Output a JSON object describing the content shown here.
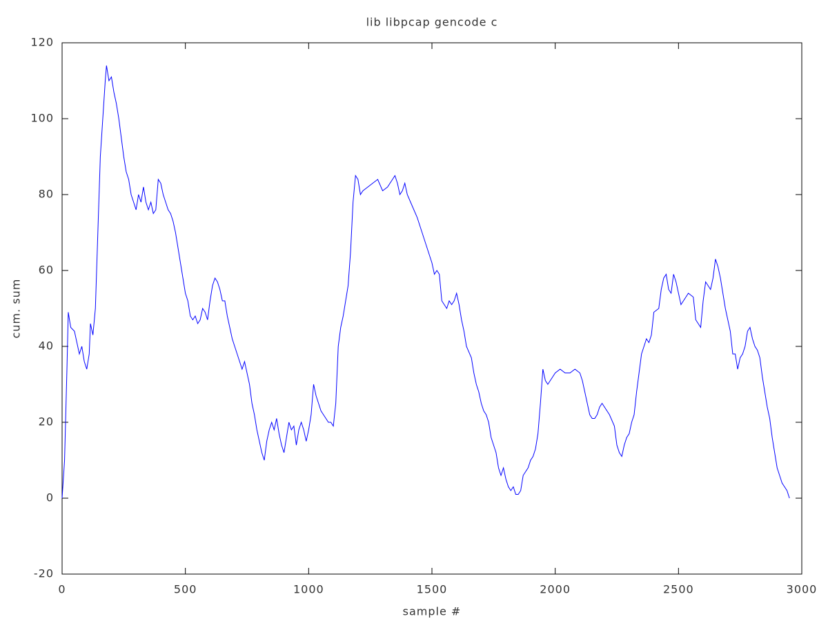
{
  "chart_data": {
    "type": "line",
    "title": "lib libpcap gencode c",
    "x_label": "sample #",
    "y_label": "cum. sum",
    "x": [
      0,
      10,
      20,
      25,
      35,
      50,
      60,
      70,
      80,
      90,
      100,
      110,
      115,
      125,
      135,
      145,
      155,
      165,
      175,
      180,
      190,
      200,
      210,
      220,
      230,
      240,
      250,
      260,
      270,
      280,
      290,
      300,
      310,
      320,
      330,
      340,
      350,
      360,
      370,
      380,
      390,
      400,
      410,
      420,
      430,
      440,
      450,
      460,
      470,
      480,
      490,
      500,
      510,
      520,
      530,
      540,
      550,
      560,
      570,
      580,
      590,
      600,
      610,
      620,
      630,
      640,
      650,
      660,
      670,
      680,
      690,
      700,
      710,
      720,
      730,
      740,
      750,
      760,
      770,
      780,
      790,
      800,
      810,
      820,
      830,
      840,
      850,
      860,
      870,
      880,
      890,
      900,
      910,
      920,
      930,
      940,
      950,
      960,
      970,
      980,
      990,
      1000,
      1010,
      1020,
      1030,
      1040,
      1050,
      1060,
      1070,
      1080,
      1090,
      1100,
      1110,
      1120,
      1130,
      1140,
      1150,
      1160,
      1170,
      1180,
      1190,
      1200,
      1210,
      1220,
      1240,
      1260,
      1280,
      1300,
      1320,
      1340,
      1350,
      1360,
      1370,
      1380,
      1390,
      1400,
      1420,
      1440,
      1460,
      1480,
      1500,
      1510,
      1520,
      1530,
      1540,
      1550,
      1560,
      1570,
      1580,
      1590,
      1600,
      1610,
      1620,
      1630,
      1640,
      1660,
      1670,
      1680,
      1690,
      1700,
      1710,
      1720,
      1730,
      1740,
      1750,
      1760,
      1770,
      1780,
      1790,
      1800,
      1810,
      1820,
      1830,
      1840,
      1850,
      1860,
      1870,
      1880,
      1890,
      1900,
      1910,
      1920,
      1930,
      1940,
      1950,
      1960,
      1970,
      1980,
      1990,
      2000,
      2020,
      2040,
      2060,
      2080,
      2100,
      2110,
      2120,
      2130,
      2140,
      2150,
      2160,
      2170,
      2180,
      2190,
      2200,
      2220,
      2240,
      2250,
      2260,
      2270,
      2280,
      2290,
      2300,
      2310,
      2320,
      2330,
      2340,
      2350,
      2360,
      2370,
      2380,
      2390,
      2400,
      2420,
      2430,
      2440,
      2450,
      2460,
      2470,
      2480,
      2490,
      2500,
      2510,
      2520,
      2530,
      2540,
      2560,
      2570,
      2580,
      2590,
      2600,
      2610,
      2620,
      2630,
      2640,
      2650,
      2660,
      2670,
      2680,
      2690,
      2700,
      2710,
      2720,
      2730,
      2740,
      2750,
      2760,
      2770,
      2780,
      2790,
      2800,
      2810,
      2820,
      2830,
      2840,
      2850,
      2860,
      2870,
      2880,
      2890,
      2900,
      2910,
      2920,
      2930,
      2940,
      2950
    ],
    "series": [
      {
        "color": "#0000ff",
        "values": [
          0,
          10,
          35,
          49,
          45,
          44,
          41,
          38,
          40,
          36,
          34,
          38,
          46,
          43,
          50,
          70,
          90,
          100,
          110,
          114,
          110,
          111,
          107,
          104,
          100,
          95,
          90,
          86,
          84,
          80,
          78,
          76,
          80,
          78,
          82,
          78,
          76,
          78,
          75,
          76,
          84,
          83,
          80,
          78,
          76,
          75,
          73,
          70,
          66,
          62,
          58,
          54,
          52,
          48,
          47,
          48,
          46,
          47,
          50,
          49,
          47,
          52,
          56,
          58,
          57,
          55,
          52,
          52,
          48,
          45,
          42,
          40,
          38,
          36,
          34,
          36,
          33,
          30,
          25,
          22,
          18,
          15,
          12,
          10,
          15,
          18,
          20,
          18,
          21,
          17,
          14,
          12,
          16,
          20,
          18,
          19,
          14,
          18,
          20,
          18,
          15,
          18,
          22,
          30,
          27,
          25,
          23,
          22,
          21,
          20,
          20,
          19,
          25,
          40,
          45,
          48,
          52,
          56,
          65,
          78,
          85,
          84,
          80,
          81,
          82,
          83,
          84,
          81,
          82,
          84,
          85,
          83,
          80,
          81,
          83,
          80,
          77,
          74,
          70,
          66,
          62,
          59,
          60,
          59,
          52,
          51,
          50,
          52,
          51,
          52,
          54,
          51,
          47,
          44,
          40,
          37,
          33,
          30,
          28,
          25,
          23,
          22,
          20,
          16,
          14,
          12,
          8,
          6,
          8,
          5,
          3,
          2,
          3,
          1,
          1,
          2,
          6,
          7,
          8,
          10,
          11,
          13,
          17,
          25,
          34,
          31,
          30,
          31,
          32,
          33,
          34,
          33,
          33,
          34,
          33,
          31,
          28,
          25,
          22,
          21,
          21,
          22,
          24,
          25,
          24,
          22,
          19,
          14,
          12,
          11,
          14,
          16,
          17,
          20,
          22,
          28,
          33,
          38,
          40,
          42,
          41,
          43,
          49,
          50,
          55,
          58,
          59,
          55,
          54,
          59,
          57,
          54,
          51,
          52,
          53,
          54,
          53,
          47,
          46,
          45,
          52,
          57,
          56,
          55,
          58,
          63,
          61,
          58,
          54,
          50,
          47,
          44,
          38,
          38,
          34,
          37,
          38,
          40,
          44,
          45,
          42,
          40,
          39,
          37,
          32,
          28,
          24,
          21,
          16,
          12,
          8,
          6,
          4,
          3,
          2,
          0
        ]
      }
    ],
    "xlim": [
      0,
      3000
    ],
    "ylim": [
      -20,
      120
    ],
    "xticks": [
      0,
      500,
      1000,
      1500,
      2000,
      2500,
      3000
    ],
    "yticks": [
      -20,
      0,
      20,
      40,
      60,
      80,
      100,
      120
    ]
  }
}
